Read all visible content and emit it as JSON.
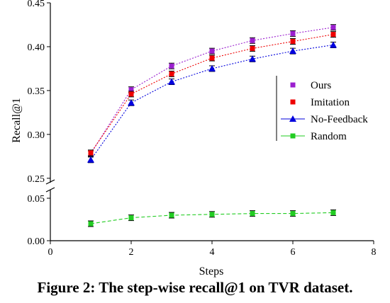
{
  "caption": "Figure 2: The step-wise recall@1 on TVR dataset.",
  "chart_data": {
    "type": "line",
    "xlabel": "Steps",
    "ylabel": "Recall@1",
    "xlim": [
      0,
      8
    ],
    "x_ticks": [
      "0",
      "2",
      "4",
      "6",
      "8"
    ],
    "y_upper_range": [
      0.245,
      0.45
    ],
    "y_upper_ticks": [
      "0.25",
      "0.30",
      "0.35",
      "0.40",
      "0.45"
    ],
    "y_lower_range": [
      0.0,
      0.06
    ],
    "y_lower_ticks": [
      "0.00",
      "0.05"
    ],
    "axis_break": true,
    "grid": false,
    "legend_position": "right",
    "x": [
      1,
      2,
      3,
      4,
      5,
      6,
      7
    ],
    "series": [
      {
        "name": "Ours",
        "color": "#9b1fcf",
        "marker": "square",
        "error_bars": true,
        "values": [
          0.278,
          0.351,
          0.378,
          0.395,
          0.407,
          0.415,
          0.422
        ]
      },
      {
        "name": "Imitation",
        "color": "#ee0000",
        "marker": "square",
        "error_bars": true,
        "values": [
          0.279,
          0.346,
          0.369,
          0.387,
          0.398,
          0.406,
          0.414
        ]
      },
      {
        "name": "No-Feedback",
        "color": "#0000dd",
        "marker": "triangle",
        "error_bars": true,
        "values": [
          0.271,
          0.336,
          0.36,
          0.375,
          0.386,
          0.395,
          0.402
        ]
      },
      {
        "name": "Random",
        "color": "#22cc22",
        "marker": "square",
        "error_bars": true,
        "values": [
          0.02,
          0.027,
          0.03,
          0.031,
          0.032,
          0.032,
          0.033
        ]
      }
    ]
  }
}
